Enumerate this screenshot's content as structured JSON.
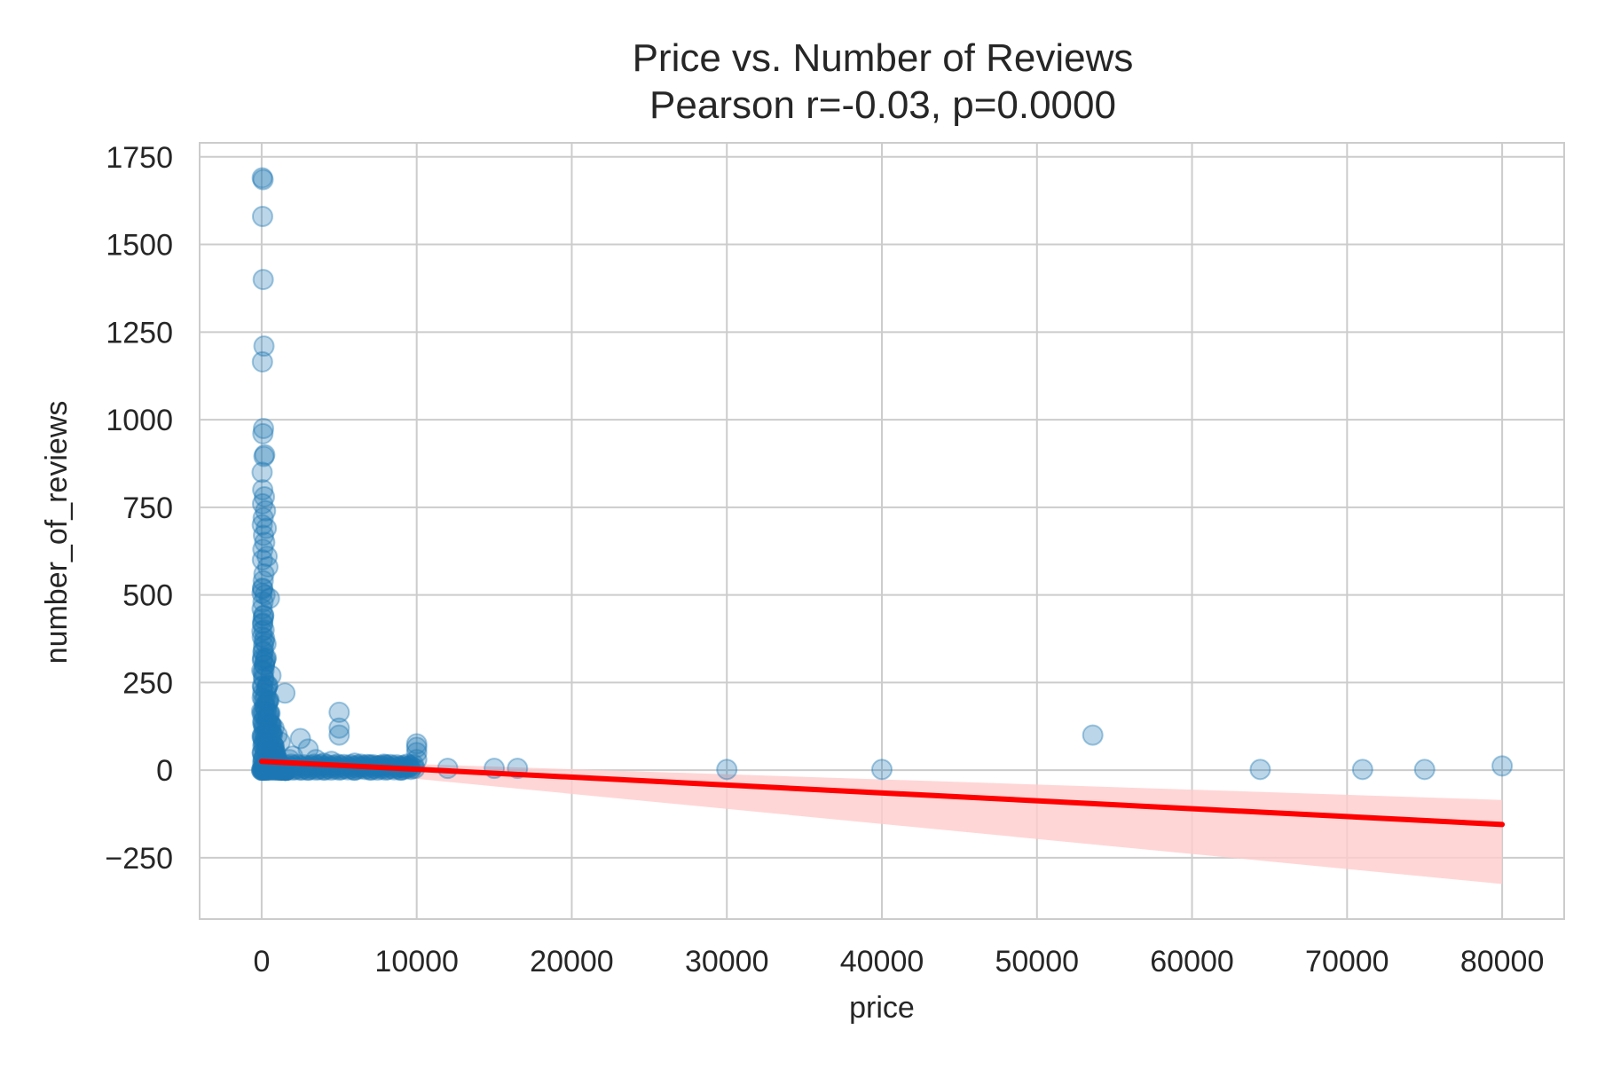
{
  "chart_data": {
    "type": "scatter",
    "title": "Price vs. Number of Reviews",
    "subtitle": "Pearson r=-0.03, p=0.0000",
    "xlabel": "price",
    "ylabel": "number_of_reviews",
    "xlim": [
      -4000,
      84000
    ],
    "ylim": [
      -425,
      1790
    ],
    "grid": true,
    "x_ticks": [
      0,
      10000,
      20000,
      30000,
      40000,
      50000,
      60000,
      70000,
      80000
    ],
    "x_tick_labels": [
      "0",
      "10000",
      "20000",
      "30000",
      "40000",
      "50000",
      "60000",
      "70000",
      "80000"
    ],
    "y_ticks": [
      -250,
      0,
      250,
      500,
      750,
      1000,
      1250,
      1500,
      1750
    ],
    "y_tick_labels": [
      "−250",
      "0",
      "250",
      "500",
      "750",
      "1000",
      "1250",
      "1500",
      "1750"
    ],
    "colors": {
      "points": "#1f77b4",
      "regression_line": "#ff0000",
      "confidence_band": "#ffcccc"
    },
    "regression": {
      "x": [
        0,
        80000
      ],
      "y": [
        25,
        -155
      ],
      "ci_lower_at_end": -325,
      "ci_upper_at_end": -85,
      "ci_lower_at_start": 18,
      "ci_upper_at_start": 32
    },
    "points": {
      "x": [
        40,
        90,
        60,
        100,
        150,
        50,
        120,
        80,
        200,
        150,
        30,
        70,
        180,
        60,
        250,
        100,
        40,
        300,
        120,
        200,
        80,
        350,
        50,
        400,
        150,
        100,
        60,
        220,
        90,
        500,
        30,
        130,
        70,
        160,
        40,
        280,
        110,
        60,
        180,
        90,
        600,
        150,
        45,
        75,
        130,
        210,
        35,
        95,
        160,
        55,
        240,
        120,
        80,
        300,
        50,
        170,
        100,
        65,
        140,
        200,
        1000,
        1500,
        800,
        1200,
        2500,
        3000,
        2000,
        1800,
        4000,
        5000,
        5000,
        5000,
        3500,
        4500,
        6000,
        7000,
        8000,
        6500,
        7500,
        9000,
        10000,
        10000,
        10000,
        10000,
        9500,
        12000,
        15000,
        16500,
        30000,
        40000,
        53600,
        64400,
        71000,
        75000,
        80000,
        100,
        200,
        300,
        500,
        800,
        1200,
        1500,
        2000,
        2500,
        3000,
        3500,
        4000,
        5000,
        6000,
        7000,
        8000,
        9000,
        250,
        150,
        400,
        700,
        1100,
        50,
        60,
        120,
        90,
        180,
        300,
        450
      ],
      "y": [
        1690,
        1685,
        1580,
        1400,
        1210,
        1165,
        975,
        960,
        900,
        895,
        850,
        800,
        780,
        760,
        740,
        720,
        700,
        690,
        670,
        650,
        630,
        610,
        600,
        580,
        560,
        540,
        520,
        500,
        480,
        490,
        460,
        440,
        420,
        400,
        380,
        360,
        340,
        320,
        300,
        280,
        270,
        260,
        240,
        220,
        200,
        180,
        160,
        140,
        120,
        100,
        90,
        80,
        70,
        60,
        50,
        40,
        30,
        20,
        10,
        5,
        100,
        220,
        120,
        80,
        90,
        60,
        40,
        30,
        20,
        165,
        120,
        100,
        30,
        25,
        20,
        15,
        15,
        10,
        12,
        8,
        75,
        65,
        50,
        30,
        10,
        5,
        5,
        5,
        2,
        2,
        100,
        2,
        2,
        2,
        12,
        0,
        0,
        0,
        0,
        0,
        0,
        0,
        0,
        0,
        0,
        0,
        0,
        0,
        0,
        0,
        0,
        0,
        3,
        2,
        1,
        4,
        2,
        0,
        1,
        2,
        0,
        1,
        0,
        2
      ]
    }
  }
}
